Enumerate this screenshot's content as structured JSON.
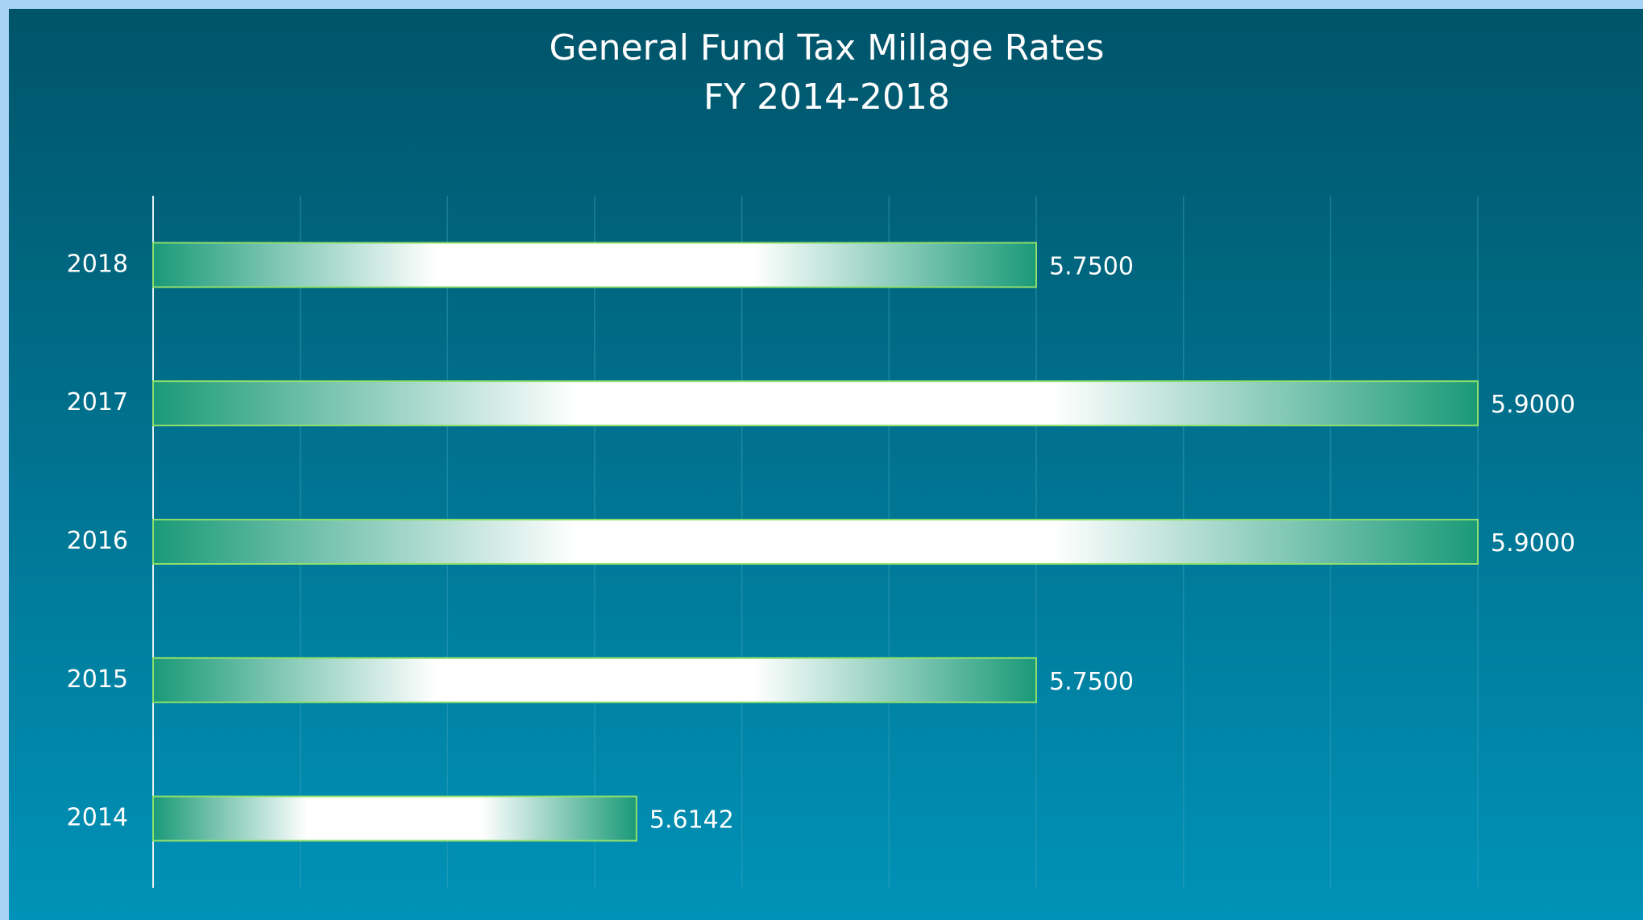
{
  "chart_data": {
    "type": "bar",
    "orientation": "horizontal",
    "title": "General Fund Tax Millage Rates",
    "subtitle": "FY 2014-2018",
    "categories": [
      "2018",
      "2017",
      "2016",
      "2015",
      "2014"
    ],
    "values": [
      5.75,
      5.9,
      5.9,
      5.75,
      5.6142
    ],
    "value_labels": [
      "5.7500",
      "5.9000",
      "5.9000",
      "5.7500",
      "5.6142"
    ],
    "color": "#1a9a78",
    "xlim": [
      5.45,
      5.9
    ],
    "xticks": [
      5.45,
      5.5,
      5.55,
      5.6,
      5.65,
      5.7,
      5.75,
      5.8,
      5.85,
      5.9
    ],
    "grid": true
  }
}
